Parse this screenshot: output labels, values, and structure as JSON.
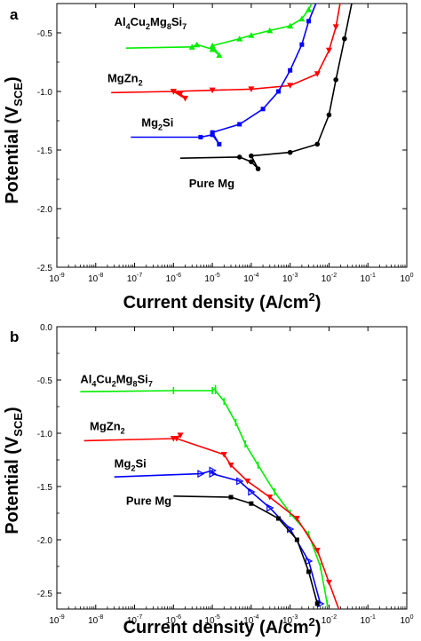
{
  "chart_data": [
    {
      "panel": "a",
      "type": "line",
      "xlabel": "Current density (A/cm",
      "xlabel_sup": "2",
      "xlabel_close": ")",
      "ylabel": "Potential (V",
      "ylabel_sub": "SCE",
      "ylabel_close": ")",
      "x_scale": "log",
      "xlim": [
        1e-09,
        1
      ],
      "ylim": [
        -2.5,
        -0.25
      ],
      "x_ticks": [
        {
          "b": "10",
          "e": "-9"
        },
        {
          "b": "10",
          "e": "-8"
        },
        {
          "b": "10",
          "e": "-7"
        },
        {
          "b": "10",
          "e": "-6"
        },
        {
          "b": "10",
          "e": "-5"
        },
        {
          "b": "10",
          "e": "-4"
        },
        {
          "b": "10",
          "e": "-3"
        },
        {
          "b": "10",
          "e": "-2"
        },
        {
          "b": "10",
          "e": "-1"
        },
        {
          "b": "10",
          "e": "0"
        }
      ],
      "y_ticks": [
        "-2.5",
        "-2.0",
        "-1.5",
        "-1.0",
        "-0.5"
      ],
      "y_tick_values": [
        -2.5,
        -2.0,
        -1.5,
        -1.0,
        -0.5
      ],
      "series": [
        {
          "color": "#00ee00",
          "marker": "triangle-up",
          "label_parts": [
            "Al",
            "4",
            "Cu",
            "2",
            "Mg",
            "8",
            "Si",
            "7"
          ],
          "label_at": [
            3e-08,
            -0.44
          ],
          "points": [
            [
              6e-08,
              -0.63
            ],
            [
              3e-06,
              -0.62
            ],
            [
              4e-06,
              -0.6
            ],
            [
              1e-05,
              -0.64
            ],
            [
              1.5e-05,
              -0.69
            ],
            [
              1e-05,
              -0.61
            ],
            [
              5e-05,
              -0.55
            ],
            [
              0.0001,
              -0.52
            ],
            [
              0.0003,
              -0.48
            ],
            [
              0.001,
              -0.44
            ],
            [
              0.002,
              -0.38
            ],
            [
              0.003,
              -0.3
            ],
            [
              0.004,
              -0.22
            ]
          ]
        },
        {
          "color": "#ff0000",
          "marker": "triangle-down",
          "label_parts": [
            "MgZn",
            "2"
          ],
          "label_at": [
            2e-08,
            -0.92
          ],
          "points": [
            [
              2.5e-08,
              -1.01
            ],
            [
              1e-06,
              -1.0
            ],
            [
              1.5e-06,
              -1.02
            ],
            [
              2e-06,
              -1.06
            ],
            [
              1e-06,
              -1.0
            ],
            [
              1e-05,
              -0.99
            ],
            [
              0.0001,
              -0.98
            ],
            [
              0.001,
              -0.95
            ],
            [
              0.005,
              -0.85
            ],
            [
              0.01,
              -0.65
            ],
            [
              0.015,
              -0.45
            ],
            [
              0.02,
              -0.22
            ]
          ]
        },
        {
          "color": "#0000ff",
          "marker": "square",
          "label_parts": [
            "Mg",
            "2",
            "Si"
          ],
          "label_at": [
            1.5e-07,
            -1.3
          ],
          "points": [
            [
              8e-08,
              -1.39
            ],
            [
              5e-06,
              -1.39
            ],
            [
              1e-05,
              -1.37
            ],
            [
              1.5e-05,
              -1.45
            ],
            [
              1e-05,
              -1.35
            ],
            [
              5e-05,
              -1.28
            ],
            [
              0.0002,
              -1.15
            ],
            [
              0.0005,
              -1.0
            ],
            [
              0.001,
              -0.82
            ],
            [
              0.002,
              -0.6
            ],
            [
              0.003,
              -0.4
            ],
            [
              0.005,
              -0.22
            ]
          ]
        },
        {
          "color": "#000000",
          "marker": "circle",
          "label_parts": [
            "Pure Mg"
          ],
          "label_at": [
            2.5e-06,
            -1.82
          ],
          "points": [
            [
              1.5e-06,
              -1.57
            ],
            [
              5e-05,
              -1.56
            ],
            [
              0.0001,
              -1.6
            ],
            [
              0.00015,
              -1.66
            ],
            [
              0.0001,
              -1.55
            ],
            [
              0.001,
              -1.52
            ],
            [
              0.005,
              -1.45
            ],
            [
              0.01,
              -1.2
            ],
            [
              0.015,
              -0.9
            ],
            [
              0.025,
              -0.55
            ],
            [
              0.04,
              -0.22
            ]
          ]
        }
      ]
    },
    {
      "panel": "b",
      "type": "line",
      "xlabel": "Current density (A/cm",
      "xlabel_sup": "2",
      "xlabel_close": ")",
      "ylabel": "Potential (V",
      "ylabel_sub": "SCE",
      "ylabel_close": ")",
      "x_scale": "log",
      "xlim": [
        1e-09,
        1
      ],
      "ylim": [
        -2.65,
        0.0
      ],
      "x_ticks": [
        {
          "b": "10",
          "e": "-9"
        },
        {
          "b": "10",
          "e": "-8"
        },
        {
          "b": "10",
          "e": "-7"
        },
        {
          "b": "10",
          "e": "-6"
        },
        {
          "b": "10",
          "e": "-5"
        },
        {
          "b": "10",
          "e": "-4"
        },
        {
          "b": "10",
          "e": "-3"
        },
        {
          "b": "10",
          "e": "-2"
        },
        {
          "b": "10",
          "e": "-1"
        },
        {
          "b": "10",
          "e": "0"
        }
      ],
      "y_ticks": [
        "-2.5",
        "-2.0",
        "-1.5",
        "-1.0",
        "-0.5",
        "0.0"
      ],
      "y_tick_values": [
        -2.5,
        -2.0,
        -1.5,
        -1.0,
        -0.5,
        0.0
      ],
      "series": [
        {
          "color": "#00ee00",
          "marker": "bar",
          "label_parts": [
            "Al",
            "4",
            "Cu",
            "2",
            "Mg",
            "8",
            "Si",
            "7"
          ],
          "label_at": [
            4e-09,
            -0.53
          ],
          "points": [
            [
              4e-09,
              -0.61
            ],
            [
              1e-06,
              -0.6
            ],
            [
              1e-05,
              -0.6
            ],
            [
              1.2e-05,
              -0.58
            ],
            [
              1.2e-05,
              -0.6
            ],
            [
              2e-05,
              -0.7
            ],
            [
              4e-05,
              -0.9
            ],
            [
              7e-05,
              -1.1
            ],
            [
              0.00015,
              -1.3
            ],
            [
              0.0004,
              -1.55
            ],
            [
              0.001,
              -1.75
            ],
            [
              0.003,
              -1.95
            ],
            [
              0.006,
              -2.25
            ],
            [
              0.009,
              -2.6
            ]
          ]
        },
        {
          "color": "#ff0000",
          "marker": "triangle-down",
          "label_parts": [
            "MgZn",
            "2"
          ],
          "label_at": [
            7e-09,
            -0.97
          ],
          "points": [
            [
              5e-09,
              -1.07
            ],
            [
              1e-06,
              -1.05
            ],
            [
              1.5e-06,
              -1.02
            ],
            [
              1.2e-06,
              -1.05
            ],
            [
              2e-05,
              -1.2
            ],
            [
              3e-05,
              -1.3
            ],
            [
              8e-05,
              -1.45
            ],
            [
              0.0003,
              -1.6
            ],
            [
              0.0015,
              -1.8
            ],
            [
              0.005,
              -2.1
            ],
            [
              0.01,
              -2.4
            ],
            [
              0.02,
              -2.7
            ]
          ]
        },
        {
          "color": "#0000ff",
          "marker": "triangle-right",
          "label_parts": [
            "Mg",
            "2",
            "Si"
          ],
          "label_at": [
            3e-08,
            -1.32
          ],
          "points": [
            [
              3e-08,
              -1.41
            ],
            [
              5e-06,
              -1.38
            ],
            [
              1e-05,
              -1.35
            ],
            [
              1e-05,
              -1.38
            ],
            [
              5e-05,
              -1.45
            ],
            [
              0.0001,
              -1.55
            ],
            [
              0.0003,
              -1.7
            ],
            [
              0.001,
              -1.9
            ],
            [
              0.003,
              -2.2
            ],
            [
              0.006,
              -2.6
            ]
          ]
        },
        {
          "color": "#000000",
          "marker": "square",
          "label_parts": [
            "Pure Mg"
          ],
          "label_at": [
            6e-08,
            -1.67
          ],
          "points": [
            [
              1e-06,
              -1.59
            ],
            [
              3e-05,
              -1.6
            ],
            [
              0.0001,
              -1.66
            ],
            [
              0.0005,
              -1.8
            ],
            [
              0.0015,
              -2.0
            ],
            [
              0.003,
              -2.3
            ],
            [
              0.005,
              -2.6
            ]
          ]
        }
      ]
    }
  ],
  "panels": [
    {
      "letter": "a"
    },
    {
      "letter": "b"
    }
  ]
}
